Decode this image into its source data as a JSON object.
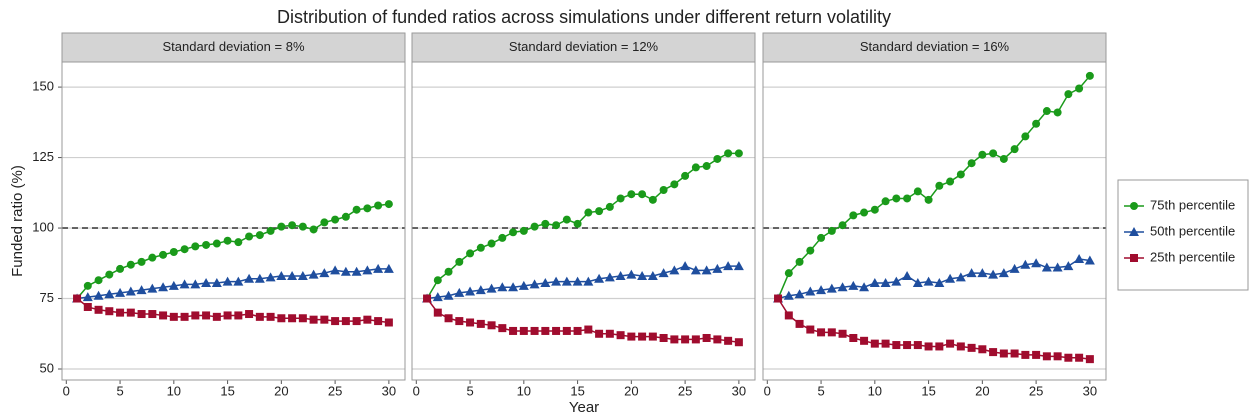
{
  "title": "Distribution of funded ratios across simulations under different return volatility",
  "xlabel": "Year",
  "ylabel": "Funded ratio (%)",
  "chart_data": [
    {
      "type": "line",
      "title": "Standard deviation = 8%",
      "x": [
        1,
        2,
        3,
        4,
        5,
        6,
        7,
        8,
        9,
        10,
        11,
        12,
        13,
        14,
        15,
        16,
        17,
        18,
        19,
        20,
        21,
        22,
        23,
        24,
        25,
        26,
        27,
        28,
        29,
        30
      ],
      "series": [
        {
          "name": "75th percentile",
          "color": "#1a9a1a",
          "marker": "circle",
          "values": [
            75,
            79.5,
            81.5,
            83.5,
            85.5,
            87,
            88,
            89.5,
            90.5,
            91.5,
            92.5,
            93.5,
            94,
            94.5,
            95.5,
            95,
            97,
            97.5,
            99,
            100.5,
            101,
            100.5,
            99.5,
            102,
            103,
            104,
            106.5,
            107,
            108,
            108.5
          ]
        },
        {
          "name": "50th percentile",
          "color": "#1f4e9e",
          "marker": "triangle",
          "values": [
            75,
            75.5,
            76,
            76.5,
            77,
            77.5,
            78,
            78.5,
            79,
            79.5,
            80,
            80,
            80.5,
            80.5,
            81,
            81,
            82,
            82,
            82.5,
            83,
            83,
            83,
            83.5,
            84,
            85,
            84.5,
            84.5,
            85,
            85.5,
            85.5
          ]
        },
        {
          "name": "25th percentile",
          "color": "#a00c2e",
          "marker": "square",
          "values": [
            75,
            72,
            71,
            70.5,
            70,
            70,
            69.5,
            69.5,
            69,
            68.5,
            68.5,
            69,
            69,
            68.5,
            69,
            69,
            69.5,
            68.5,
            68.5,
            68,
            68,
            68,
            67.5,
            67.5,
            67,
            67,
            67,
            67.5,
            67,
            66.5
          ]
        }
      ],
      "xlim": [
        -0.4,
        31.5
      ],
      "ylim": [
        46.1,
        158.9
      ],
      "xticks": [
        0,
        5,
        10,
        15,
        20,
        25,
        30
      ],
      "yticks": [
        50,
        75,
        100,
        125,
        150
      ],
      "hline": 100,
      "grid": true
    },
    {
      "type": "line",
      "title": "Standard deviation = 12%",
      "x": [
        1,
        2,
        3,
        4,
        5,
        6,
        7,
        8,
        9,
        10,
        11,
        12,
        13,
        14,
        15,
        16,
        17,
        18,
        19,
        20,
        21,
        22,
        23,
        24,
        25,
        26,
        27,
        28,
        29,
        30
      ],
      "series": [
        {
          "name": "75th percentile",
          "color": "#1a9a1a",
          "marker": "circle",
          "values": [
            75,
            81.5,
            84.5,
            88,
            91,
            93,
            94.5,
            96.5,
            98.5,
            99,
            100.5,
            101.5,
            101,
            103,
            101.5,
            105.5,
            106,
            107.5,
            110.5,
            112,
            112,
            110,
            113.5,
            115.5,
            118.5,
            121.5,
            122,
            124.5,
            126.5,
            126.5
          ]
        },
        {
          "name": "50th percentile",
          "color": "#1f4e9e",
          "marker": "triangle",
          "values": [
            75,
            75.5,
            76,
            77,
            77.5,
            78,
            78.5,
            79,
            79,
            79.5,
            80,
            80.5,
            81,
            81,
            81,
            81,
            82,
            82.5,
            83,
            83.5,
            83,
            83,
            84,
            85,
            86.5,
            85,
            85,
            85.5,
            86.5,
            86.5
          ]
        },
        {
          "name": "25th percentile",
          "color": "#a00c2e",
          "marker": "square",
          "values": [
            75,
            70,
            68,
            67,
            66.5,
            66,
            65.5,
            64.5,
            63.5,
            63.5,
            63.5,
            63.5,
            63.5,
            63.5,
            63.5,
            64,
            62.5,
            62.5,
            62,
            61.5,
            61.5,
            61.5,
            61,
            60.5,
            60.5,
            60.5,
            61,
            60.5,
            60,
            59.5
          ]
        }
      ],
      "xlim": [
        -0.4,
        31.5
      ],
      "ylim": [
        46.1,
        158.9
      ],
      "xticks": [
        0,
        5,
        10,
        15,
        20,
        25,
        30
      ],
      "yticks": [
        50,
        75,
        100,
        125,
        150
      ],
      "hline": 100,
      "grid": true
    },
    {
      "type": "line",
      "title": "Standard deviation = 16%",
      "x": [
        1,
        2,
        3,
        4,
        5,
        6,
        7,
        8,
        9,
        10,
        11,
        12,
        13,
        14,
        15,
        16,
        17,
        18,
        19,
        20,
        21,
        22,
        23,
        24,
        25,
        26,
        27,
        28,
        29,
        30
      ],
      "series": [
        {
          "name": "75th percentile",
          "color": "#1a9a1a",
          "marker": "circle",
          "values": [
            75,
            84,
            88,
            92,
            96.5,
            99,
            101,
            104.5,
            105.5,
            106.5,
            109.5,
            110.5,
            110.5,
            113,
            110,
            115,
            116.5,
            119,
            123,
            126,
            126.5,
            124.5,
            128,
            132.5,
            137,
            141.5,
            141,
            147.5,
            149.5,
            154
          ]
        },
        {
          "name": "50th percentile",
          "color": "#1f4e9e",
          "marker": "triangle",
          "values": [
            75,
            76,
            76.5,
            77.5,
            78,
            78.5,
            79,
            79.5,
            79,
            80.5,
            80.5,
            81,
            83,
            80.5,
            81,
            80.5,
            82,
            82.5,
            84,
            84,
            83.5,
            84,
            85.5,
            87,
            87.5,
            86,
            86,
            86.5,
            89,
            88.5
          ]
        },
        {
          "name": "25th percentile",
          "color": "#a00c2e",
          "marker": "square",
          "values": [
            75,
            69,
            66,
            64,
            63,
            63,
            62.5,
            61,
            60,
            59,
            59,
            58.5,
            58.5,
            58.5,
            58,
            58,
            59,
            58,
            57.5,
            57,
            56,
            55.5,
            55.5,
            55,
            55,
            54.5,
            54.5,
            54,
            54,
            53.5
          ]
        }
      ],
      "xlim": [
        -0.4,
        31.5
      ],
      "ylim": [
        46.1,
        158.9
      ],
      "xticks": [
        0,
        5,
        10,
        15,
        20,
        25,
        30
      ],
      "yticks": [
        50,
        75,
        100,
        125,
        150
      ],
      "hline": 100,
      "grid": true
    }
  ]
}
